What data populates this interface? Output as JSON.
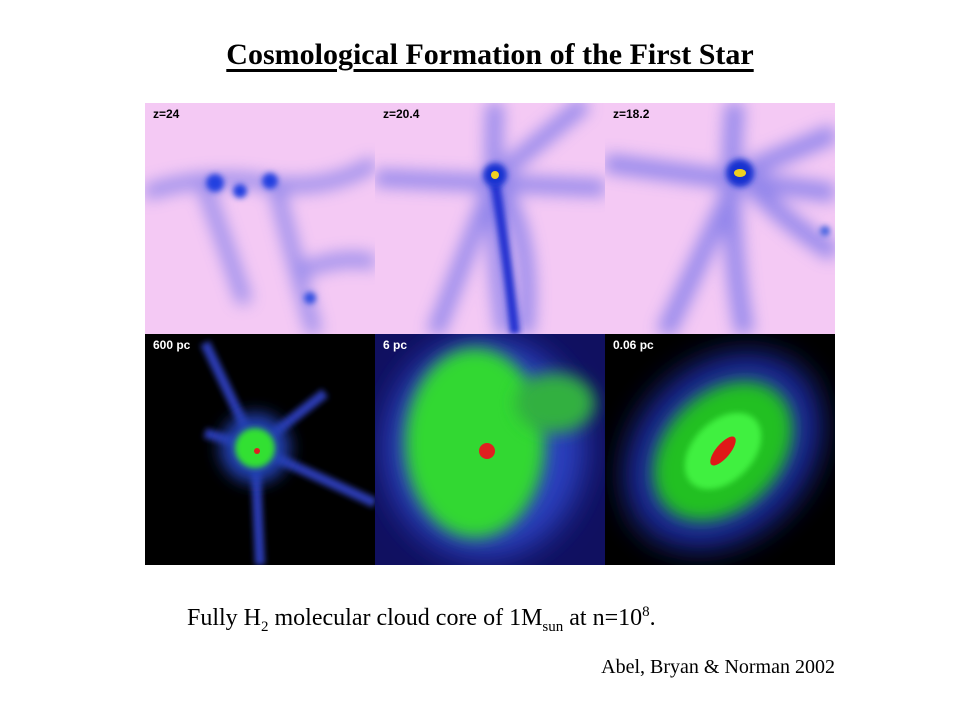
{
  "title": "Cosmological Formation of the First Star",
  "panels": [
    {
      "label": "z=24"
    },
    {
      "label": "z=20.4"
    },
    {
      "label": "z=18.2"
    },
    {
      "label": "600 pc"
    },
    {
      "label": "6 pc"
    },
    {
      "label": "0.06 pc"
    }
  ],
  "caption": [
    "Fully H",
    "2",
    "molecular cloud core of 1M",
    "sun",
    "at n=10",
    "8",
    "."
  ],
  "citation": "Abel, Bryan & Norman 2002"
}
